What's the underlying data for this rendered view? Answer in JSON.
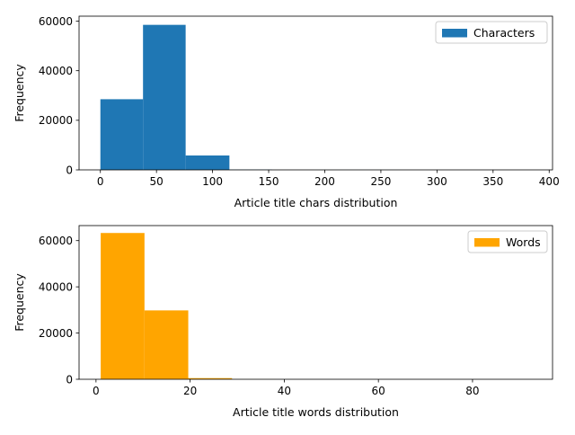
{
  "chart_data": [
    {
      "type": "bar",
      "histogram": true,
      "xlabel": "Article title chars distribution",
      "ylabel": "Frequency",
      "xlim": [
        -19,
        403
      ],
      "ylim": [
        0,
        62000
      ],
      "x_ticks": [
        0,
        50,
        100,
        150,
        200,
        250,
        300,
        350,
        400
      ],
      "y_ticks": [
        0,
        20000,
        40000,
        60000
      ],
      "grid": false,
      "legend_position": "top-right",
      "series": [
        {
          "name": "Characters",
          "color": "#1f77b4",
          "bins": [
            {
              "x0": 0,
              "x1": 38,
              "value": 28500
            },
            {
              "x0": 38,
              "x1": 76,
              "value": 58500
            },
            {
              "x0": 76,
              "x1": 115,
              "value": 5800
            },
            {
              "x0": 115,
              "x1": 153,
              "value": 100
            },
            {
              "x0": 153,
              "x1": 191,
              "value": 10
            },
            {
              "x0": 191,
              "x1": 230,
              "value": 5
            },
            {
              "x0": 230,
              "x1": 268,
              "value": 2
            },
            {
              "x0": 268,
              "x1": 306,
              "value": 1
            },
            {
              "x0": 306,
              "x1": 345,
              "value": 1
            },
            {
              "x0": 345,
              "x1": 383,
              "value": 1
            }
          ]
        }
      ]
    },
    {
      "type": "bar",
      "histogram": true,
      "xlabel": "Article title words distribution",
      "ylabel": "Frequency",
      "xlim": [
        -3.6,
        97
      ],
      "ylim": [
        0,
        66500
      ],
      "x_ticks": [
        0,
        20,
        40,
        60,
        80
      ],
      "y_ticks": [
        0,
        20000,
        40000,
        60000
      ],
      "grid": false,
      "legend_position": "top-right",
      "series": [
        {
          "name": "Words",
          "color": "#ffa500",
          "bins": [
            {
              "x0": 1,
              "x1": 10.3,
              "value": 63300
            },
            {
              "x0": 10.3,
              "x1": 19.6,
              "value": 29800
            },
            {
              "x0": 19.6,
              "x1": 28.9,
              "value": 500
            },
            {
              "x0": 28.9,
              "x1": 38.2,
              "value": 30
            },
            {
              "x0": 38.2,
              "x1": 47.5,
              "value": 5
            },
            {
              "x0": 47.5,
              "x1": 56.8,
              "value": 2
            },
            {
              "x0": 56.8,
              "x1": 66.1,
              "value": 1
            },
            {
              "x0": 66.1,
              "x1": 75.4,
              "value": 1
            },
            {
              "x0": 75.4,
              "x1": 84.7,
              "value": 1
            },
            {
              "x0": 84.7,
              "x1": 94,
              "value": 1
            }
          ]
        }
      ]
    }
  ]
}
